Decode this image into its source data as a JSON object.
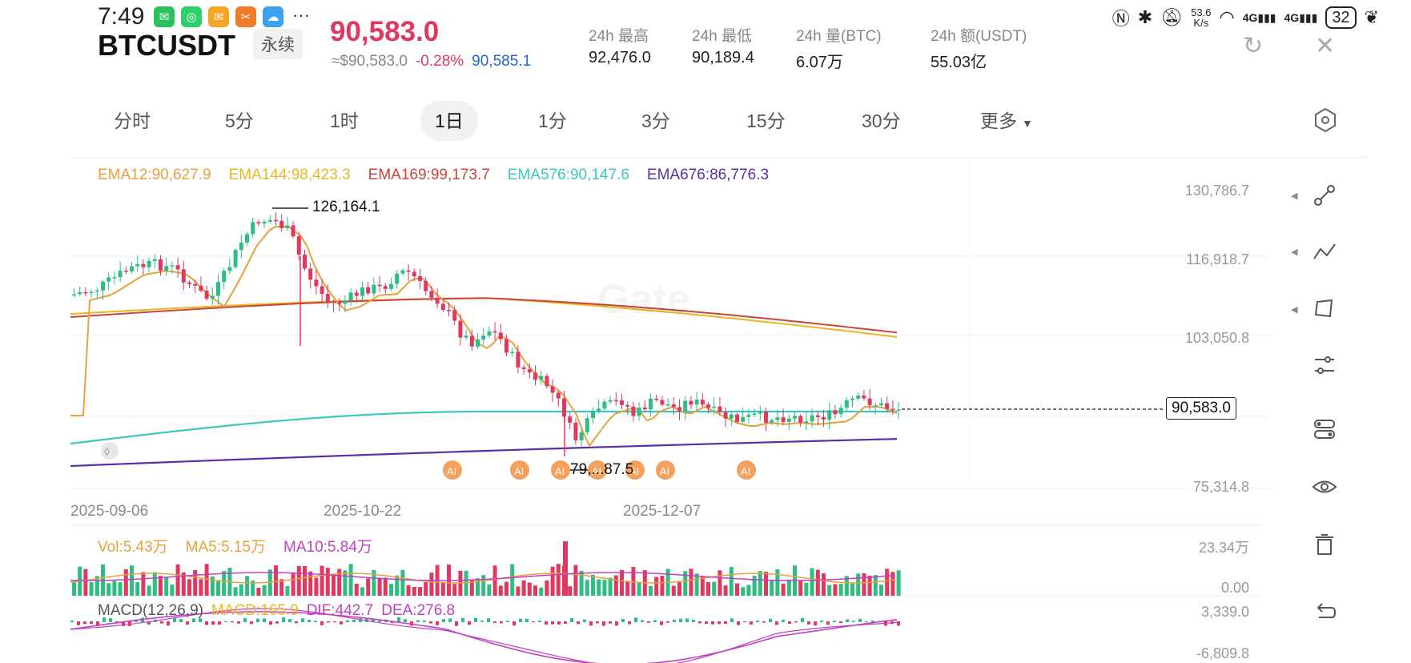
{
  "status": {
    "time": "7:49",
    "apps": [
      "WeChat",
      "App",
      "Mail",
      "Tools",
      "Weather"
    ],
    "more": "···",
    "net_speed_value": "53.6",
    "net_speed_unit": "K/s",
    "signal1": "4G",
    "signal2": "4G",
    "battery": "32"
  },
  "header": {
    "symbol": "BTCUSDT",
    "badge": "永续",
    "price": "90,583.0",
    "usd_price": "≈$90,583.0",
    "change": "-0.28%",
    "mark_price": "90,585.1",
    "stats": [
      {
        "label": "24h  最高",
        "value": "92,476.0"
      },
      {
        "label": "24h  最低",
        "value": "90,189.4"
      },
      {
        "label": "24h  量(BTC)",
        "value": "6.07万"
      },
      {
        "label": "24h  额(USDT)",
        "value": "55.03亿"
      }
    ]
  },
  "tabs": [
    {
      "label": "分时",
      "active": false
    },
    {
      "label": "5分",
      "active": false
    },
    {
      "label": "1时",
      "active": false
    },
    {
      "label": "1日",
      "active": true
    },
    {
      "label": "1分",
      "active": false
    },
    {
      "label": "3分",
      "active": false
    },
    {
      "label": "15分",
      "active": false
    },
    {
      "label": "30分",
      "active": false
    },
    {
      "label": "更多",
      "active": false
    }
  ],
  "ema_legend": [
    {
      "text": "EMA12:90,627.9",
      "color": "#e6a23c"
    },
    {
      "text": "EMA144:98,423.3",
      "color": "#e8b722"
    },
    {
      "text": "EMA169:99,173.7",
      "color": "#c9453d"
    },
    {
      "text": "EMA576:90,147.6",
      "color": "#3cc8c0"
    },
    {
      "text": "EMA676:86,776.3",
      "color": "#5b2fa6"
    }
  ],
  "watermark": "Gate",
  "y_axis": [
    "130,786.7",
    "116,918.7",
    "103,050.8",
    "75,314.8"
  ],
  "current_price_label": "90,583.0",
  "x_axis": [
    "2025-09-06",
    "2025-10-22",
    "2025-12-07"
  ],
  "high_label": "126,164.1",
  "low_label": "79,...87.5",
  "ai_marker": "AI",
  "volume": {
    "legend": [
      {
        "text": "Vol:5.43万",
        "color": "#e6a23c"
      },
      {
        "text": "MA5:5.15万",
        "color": "#e6a23c"
      },
      {
        "text": "MA10:5.84万",
        "color": "#c040c0"
      }
    ],
    "y_axis": [
      "23.34万",
      "0.00"
    ]
  },
  "macd": {
    "legend": [
      {
        "text": "MACD(12,26,9)",
        "color": "#555555"
      },
      {
        "text": "MACD:165.9",
        "color": "#e8b722"
      },
      {
        "text": "DIF:442.7",
        "color": "#c040c0"
      },
      {
        "text": "DEA:276.8",
        "color": "#c040c0"
      }
    ],
    "y_axis": [
      "3,339.0",
      "-6,809.8"
    ]
  },
  "colors": {
    "up": "#2ebd85",
    "down": "#e0385e",
    "ema12": "#e6a23c",
    "ema144": "#e8b722",
    "ema169": "#c9453d",
    "ema576": "#3cc8c0",
    "ema676": "#5b2fa6"
  },
  "tools": [
    "draw-line-icon",
    "trend-line-icon",
    "shape-icon",
    "settings-sliders-icon",
    "indicator-toggle-icon",
    "eye-icon",
    "trash-icon",
    "undo-icon"
  ]
}
